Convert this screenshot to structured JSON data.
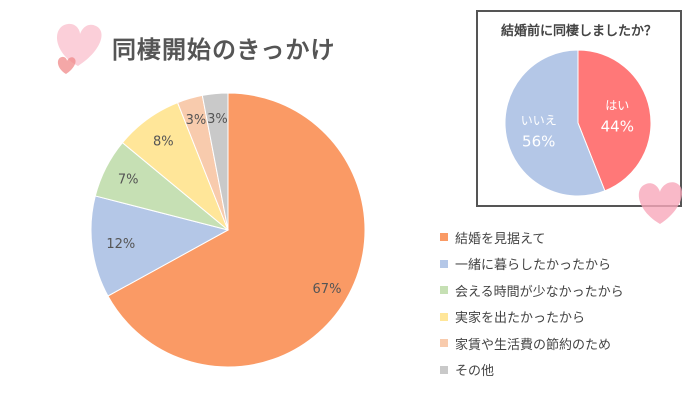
{
  "title": "同棲開始のきっかけ",
  "colors": {
    "orange": "#FA9A65",
    "blue": "#B4C7E7",
    "green": "#C6E0B4",
    "yellow": "#FFE699",
    "peach": "#F8CBAD",
    "gray": "#C9C9C9",
    "red": "#FF7878",
    "heart_pink": "#F7A8BA"
  },
  "chart_data": [
    {
      "type": "pie",
      "title": "同棲開始のきっかけ",
      "slices": [
        {
          "label": "結婚を見据えて",
          "value": 67,
          "value_label": "67%",
          "color": "#FA9A65"
        },
        {
          "label": "一緒に暮らしたかったから",
          "value": 12,
          "value_label": "12%",
          "color": "#B4C7E7"
        },
        {
          "label": "会える時間が少なかったから",
          "value": 7,
          "value_label": "7%",
          "color": "#C6E0B4"
        },
        {
          "label": "実家を出たかったから",
          "value": 8,
          "value_label": "8%",
          "color": "#FFE699"
        },
        {
          "label": "家賃や生活費の節約のため",
          "value": 3,
          "value_label": "3%",
          "color": "#F8CBAD"
        },
        {
          "label": "その他",
          "value": 3,
          "value_label": "3%",
          "color": "#C9C9C9"
        }
      ],
      "legend_position": "bottom-right"
    },
    {
      "type": "pie",
      "title": "結婚前に同棲しましたか？",
      "slices": [
        {
          "label": "はい",
          "value": 44,
          "value_label": "44%",
          "color": "#FF7878"
        },
        {
          "label": "いいえ",
          "value": 56,
          "value_label": "56%",
          "color": "#B4C7E7"
        }
      ]
    }
  ]
}
